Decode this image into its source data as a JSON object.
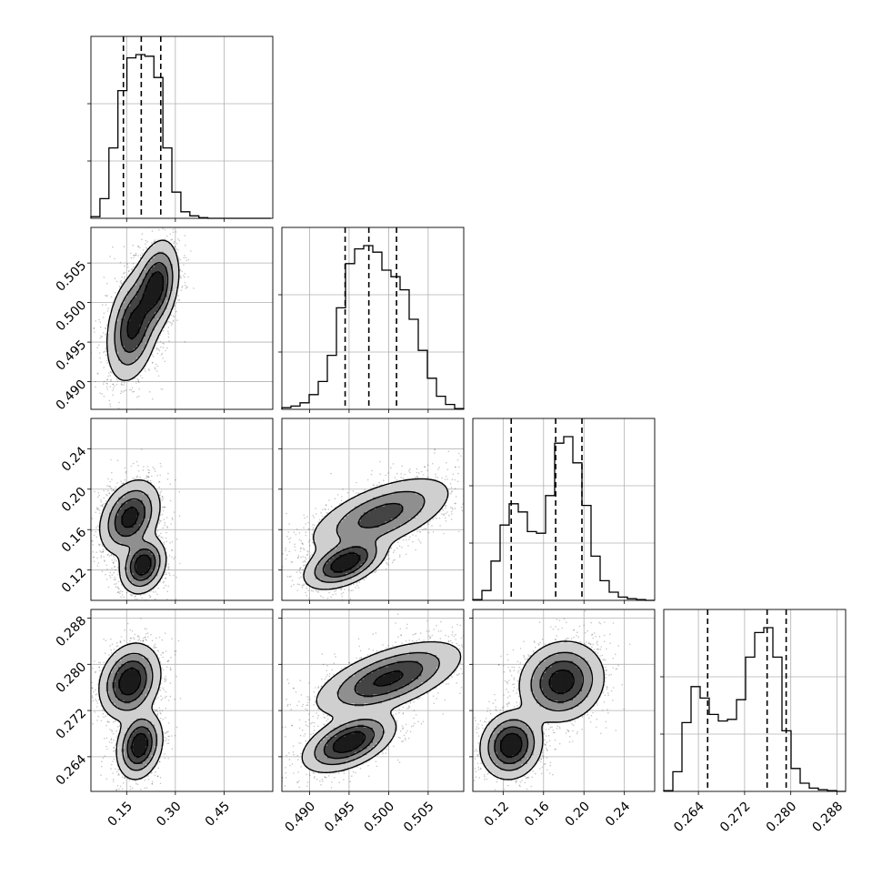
{
  "chart_data": {
    "type": "corner",
    "title": "",
    "parameters": 4,
    "grid": true,
    "histogram_color": "#000000",
    "scatter_color": "#000000",
    "contour_levels": 4,
    "axes_ranges": [
      [
        0.04,
        0.6
      ],
      [
        0.4865,
        0.5095
      ],
      [
        0.09,
        0.27
      ],
      [
        0.258,
        0.2895
      ]
    ],
    "tick_labels": [
      [
        "0.15",
        "0.30",
        "0.45"
      ],
      [
        "0.490",
        "0.495",
        "0.500",
        "0.505"
      ],
      [
        "0.12",
        "0.16",
        "0.20",
        "0.24"
      ],
      [
        "0.264",
        "0.272",
        "0.280",
        "0.288"
      ]
    ],
    "quantiles": [
      [
        0.14,
        0.195,
        0.255
      ],
      [
        0.4945,
        0.4975,
        0.501
      ],
      [
        0.128,
        0.172,
        0.198
      ],
      [
        0.2656,
        0.2759,
        0.2792
      ]
    ],
    "histograms": [
      {
        "bin_start": 0.04,
        "bin_width": 0.0277,
        "counts": [
          0.01,
          0.12,
          0.43,
          0.78,
          0.98,
          1.0,
          0.99,
          0.86,
          0.43,
          0.16,
          0.04,
          0.015,
          0.004,
          0.0,
          0.0,
          0.0,
          0.0,
          0.0,
          0.0,
          0.0
        ]
      },
      {
        "bin_start": 0.4865,
        "bin_width": 0.00115,
        "counts": [
          0.01,
          0.02,
          0.04,
          0.09,
          0.17,
          0.33,
          0.62,
          0.89,
          0.98,
          1.0,
          0.96,
          0.85,
          0.81,
          0.73,
          0.55,
          0.36,
          0.19,
          0.08,
          0.03,
          0.005
        ]
      },
      {
        "bin_start": 0.09,
        "bin_width": 0.009,
        "counts": [
          0.005,
          0.06,
          0.24,
          0.46,
          0.59,
          0.54,
          0.42,
          0.41,
          0.64,
          0.96,
          1.0,
          0.84,
          0.58,
          0.27,
          0.12,
          0.05,
          0.02,
          0.01,
          0.005,
          0.0
        ]
      },
      {
        "bin_start": 0.258,
        "bin_width": 0.001575,
        "counts": [
          0.005,
          0.12,
          0.42,
          0.64,
          0.57,
          0.47,
          0.43,
          0.44,
          0.56,
          0.82,
          0.97,
          1.0,
          0.82,
          0.37,
          0.14,
          0.05,
          0.02,
          0.01,
          0.005,
          0.0
        ]
      }
    ],
    "modes_2d": {
      "1-0": [
        {
          "x": [
            0.17,
            0.497
          ],
          "sd": [
            0.035,
            0.003
          ],
          "rho": 0.3,
          "w": 0.55
        },
        {
          "x": [
            0.24,
            0.502
          ],
          "sd": [
            0.03,
            0.0025
          ],
          "rho": 0.3,
          "w": 0.45
        }
      ],
      "2-0": [
        {
          "x": [
            0.16,
            0.172
          ],
          "sd": [
            0.04,
            0.016
          ],
          "rho": 0.3,
          "w": 0.6
        },
        {
          "x": [
            0.2,
            0.125
          ],
          "sd": [
            0.03,
            0.012
          ],
          "rho": 0.2,
          "w": 0.4
        }
      ],
      "3-0": [
        {
          "x": [
            0.16,
            0.277
          ],
          "sd": [
            0.04,
            0.0028
          ],
          "rho": 0.2,
          "w": 0.6
        },
        {
          "x": [
            0.19,
            0.266
          ],
          "sd": [
            0.03,
            0.0025
          ],
          "rho": 0.2,
          "w": 0.4
        }
      ],
      "2-1": [
        {
          "x": [
            0.499,
            0.174
          ],
          "sd": [
            0.004,
            0.017
          ],
          "rho": 0.6,
          "w": 0.6
        },
        {
          "x": [
            0.4945,
            0.127
          ],
          "sd": [
            0.0022,
            0.011
          ],
          "rho": 0.5,
          "w": 0.4
        }
      ],
      "3-1": [
        {
          "x": [
            0.5,
            0.2775
          ],
          "sd": [
            0.004,
            0.0028
          ],
          "rho": 0.6,
          "w": 0.6
        },
        {
          "x": [
            0.495,
            0.2665
          ],
          "sd": [
            0.0025,
            0.0022
          ],
          "rho": 0.5,
          "w": 0.4
        }
      ],
      "3-2": [
        {
          "x": [
            0.178,
            0.277
          ],
          "sd": [
            0.018,
            0.003
          ],
          "rho": 0.1,
          "w": 0.6
        },
        {
          "x": [
            0.128,
            0.266
          ],
          "sd": [
            0.013,
            0.0025
          ],
          "rho": 0.1,
          "w": 0.4
        }
      ]
    }
  }
}
